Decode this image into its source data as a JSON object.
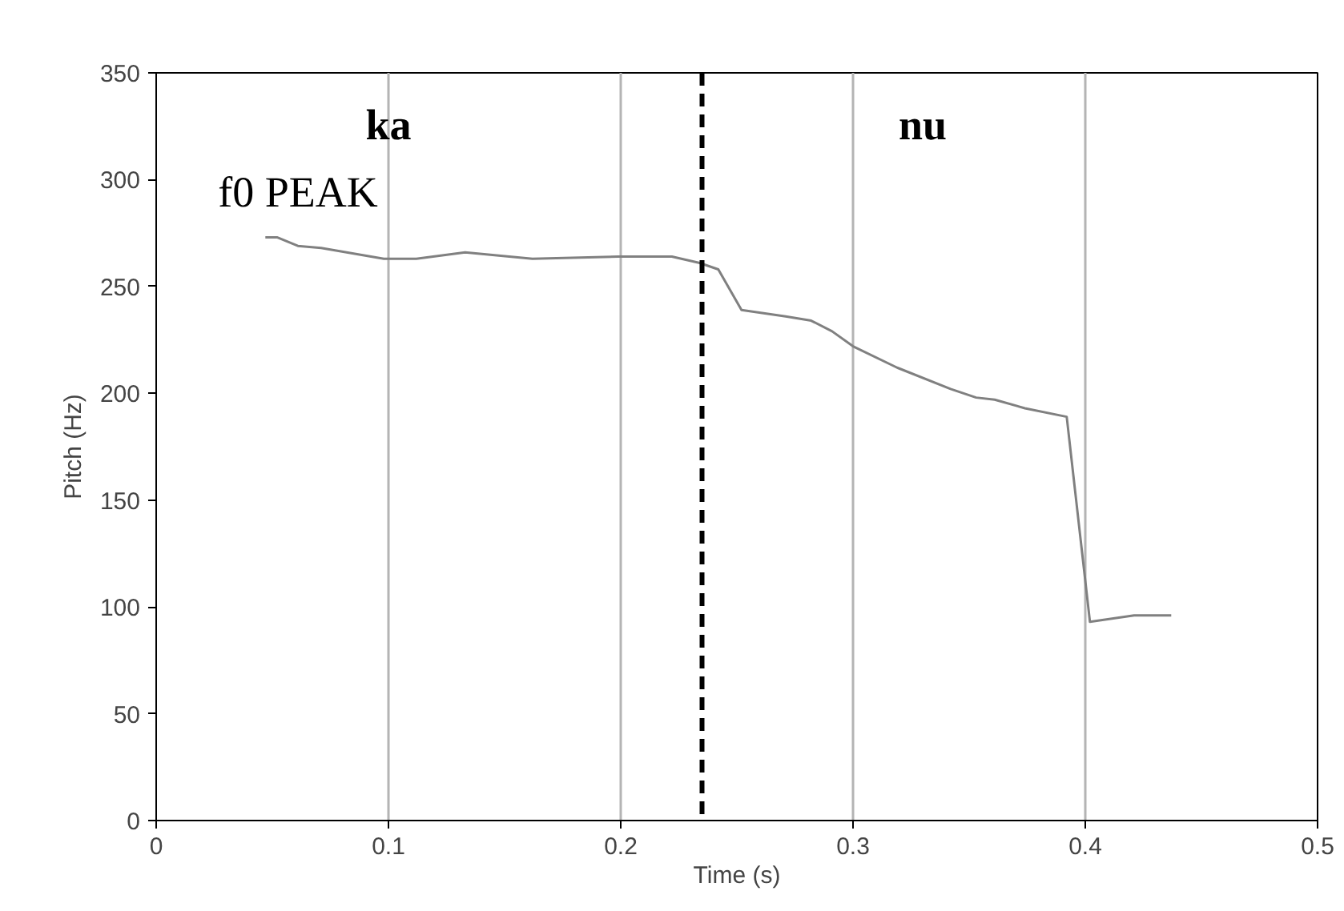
{
  "chart_data": {
    "type": "line",
    "xlabel": "Time (s)",
    "ylabel": "Pitch (Hz)",
    "xlim": [
      0,
      0.5
    ],
    "ylim": [
      0,
      350
    ],
    "xticks": [
      0,
      0.1,
      0.2,
      0.3,
      0.4,
      0.5
    ],
    "yticks": [
      0,
      50,
      100,
      150,
      200,
      250,
      300,
      350
    ],
    "grid": "x",
    "marker": "none",
    "line_style": "solid",
    "x": [
      0.047,
      0.052,
      0.061,
      0.071,
      0.098,
      0.112,
      0.133,
      0.162,
      0.199,
      0.222,
      0.234,
      0.242,
      0.252,
      0.271,
      0.282,
      0.291,
      0.3,
      0.319,
      0.342,
      0.353,
      0.361,
      0.374,
      0.392,
      0.402,
      0.421,
      0.437
    ],
    "series": [
      {
        "color": "#808080",
        "values": [
          273,
          273,
          269,
          268,
          263,
          263,
          266,
          263,
          264,
          264,
          261,
          258,
          239,
          236,
          234,
          229,
          222,
          212,
          202,
          198,
          197,
          193,
          189,
          93,
          96,
          96
        ]
      }
    ],
    "ref_lines": [
      {
        "axis": "x",
        "value": 0.235,
        "color": "#000000",
        "line_style": "dashed"
      }
    ],
    "annotations": [
      "ka",
      "nu",
      "f0 PEAK"
    ]
  }
}
